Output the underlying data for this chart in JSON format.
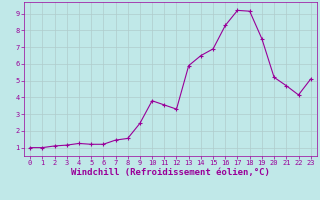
{
  "x": [
    0,
    1,
    2,
    3,
    4,
    5,
    6,
    7,
    8,
    9,
    10,
    11,
    12,
    13,
    14,
    15,
    16,
    17,
    18,
    19,
    20,
    21,
    22,
    23
  ],
  "y": [
    1.0,
    1.0,
    1.1,
    1.15,
    1.25,
    1.2,
    1.2,
    1.45,
    1.55,
    2.45,
    3.8,
    3.55,
    3.3,
    5.9,
    6.5,
    6.9,
    8.3,
    9.2,
    9.15,
    7.5,
    5.2,
    4.7,
    4.15,
    5.1
  ],
  "line_color": "#990099",
  "marker": "+",
  "marker_color": "#990099",
  "bg_color": "#c0e8e8",
  "grid_color": "#b0cccc",
  "xlabel": "Windchill (Refroidissement éolien,°C)",
  "xlabel_color": "#990099",
  "xlim": [
    -0.5,
    23.5
  ],
  "ylim": [
    0.5,
    9.7
  ],
  "yticks": [
    1,
    2,
    3,
    4,
    5,
    6,
    7,
    8,
    9
  ],
  "xticks": [
    0,
    1,
    2,
    3,
    4,
    5,
    6,
    7,
    8,
    9,
    10,
    11,
    12,
    13,
    14,
    15,
    16,
    17,
    18,
    19,
    20,
    21,
    22,
    23
  ],
  "tick_color": "#990099",
  "tick_label_color": "#990099",
  "tick_fontsize": 5.0,
  "xlabel_fontsize": 6.5,
  "linewidth": 0.8,
  "markersize": 3.0
}
